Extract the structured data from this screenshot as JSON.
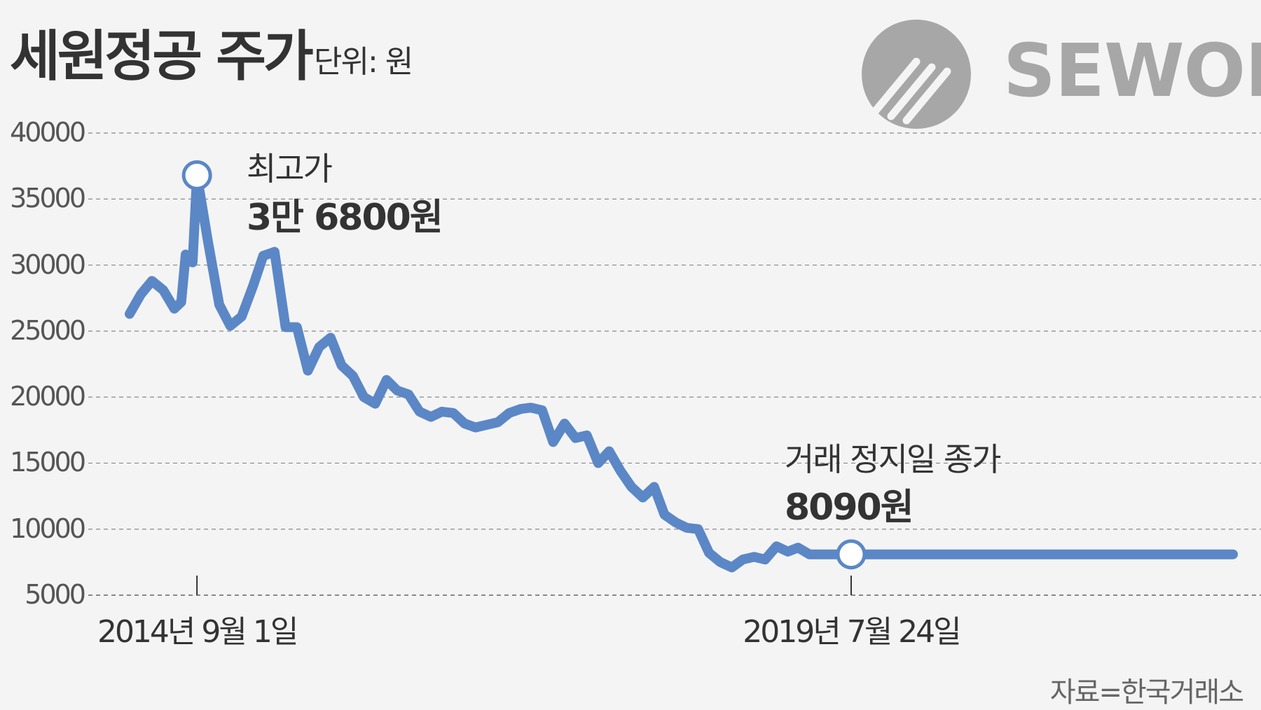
{
  "header": {
    "title": "세원정공 주가",
    "unit": "단위: 원"
  },
  "logo": {
    "text": "SEWON",
    "color": "#a7a7a7"
  },
  "source": "자료=한국거래소",
  "colors": {
    "line": "#5b87c6",
    "background": "#f4f4f4",
    "grid": "#888888",
    "text": "#333333"
  },
  "annotations": {
    "peak": {
      "label": "최고가",
      "value": "3만 6800원"
    },
    "halt": {
      "label": "거래 정지일 종가",
      "value": "8090원"
    }
  },
  "chart_data": {
    "type": "line",
    "title": "세원정공 주가",
    "ylabel": "단위: 원",
    "xlabel": "",
    "ylim": [
      5000,
      40000
    ],
    "y_ticks": [
      40000,
      35000,
      30000,
      25000,
      20000,
      15000,
      10000,
      5000
    ],
    "grid": true,
    "x_tick_labels": [
      "2014년 9월 1일",
      "2019년 7월 24일"
    ],
    "highlight_points": [
      {
        "date": "2014-09-01",
        "value": 36800
      },
      {
        "date": "2019-07-24",
        "value": 8090
      }
    ],
    "series": [
      {
        "x": [
          "2014-03",
          "2014-04",
          "2014-05",
          "2014-06",
          "2014-07",
          "2014-07-20",
          "2014-08",
          "2014-08-20",
          "2014-09-01",
          "2014-10",
          "2014-11",
          "2014-12",
          "2015-01",
          "2015-02",
          "2015-03",
          "2015-04",
          "2015-05",
          "2015-06",
          "2015-07",
          "2015-08",
          "2015-09",
          "2015-10",
          "2015-11",
          "2015-12",
          "2016-01",
          "2016-02",
          "2016-03",
          "2016-04",
          "2016-05",
          "2016-06",
          "2016-07",
          "2016-08",
          "2016-09",
          "2016-10",
          "2016-11",
          "2016-12",
          "2017-01",
          "2017-02",
          "2017-03",
          "2017-04",
          "2017-05",
          "2017-06",
          "2017-07",
          "2017-08",
          "2017-09",
          "2017-10",
          "2017-11",
          "2017-12",
          "2018-01",
          "2018-02",
          "2018-03",
          "2018-04",
          "2018-05",
          "2018-06",
          "2018-07",
          "2018-08",
          "2018-09",
          "2018-10",
          "2018-11",
          "2018-12",
          "2019-01",
          "2019-02",
          "2019-03",
          "2019-04",
          "2019-05",
          "2019-06",
          "2019-07-24",
          "2020-06",
          "2021-06",
          "2022-06"
        ],
        "values": [
          26300,
          27800,
          28800,
          28100,
          26700,
          27200,
          30800,
          30200,
          36800,
          31800,
          27000,
          25400,
          26100,
          28400,
          30700,
          31000,
          25300,
          25300,
          22000,
          23800,
          24500,
          22400,
          21600,
          20000,
          19500,
          21300,
          20500,
          20200,
          18900,
          18500,
          18900,
          18800,
          18000,
          17700,
          17900,
          18100,
          18800,
          19100,
          19200,
          19000,
          16600,
          18000,
          16900,
          17100,
          15000,
          15900,
          14400,
          13200,
          12400,
          13200,
          11100,
          10500,
          10100,
          10000,
          8200,
          7500,
          7100,
          7700,
          7900,
          7700,
          8700,
          8300,
          8600,
          8090,
          8090,
          8090,
          8090,
          8090,
          8090,
          8090
        ]
      }
    ]
  }
}
